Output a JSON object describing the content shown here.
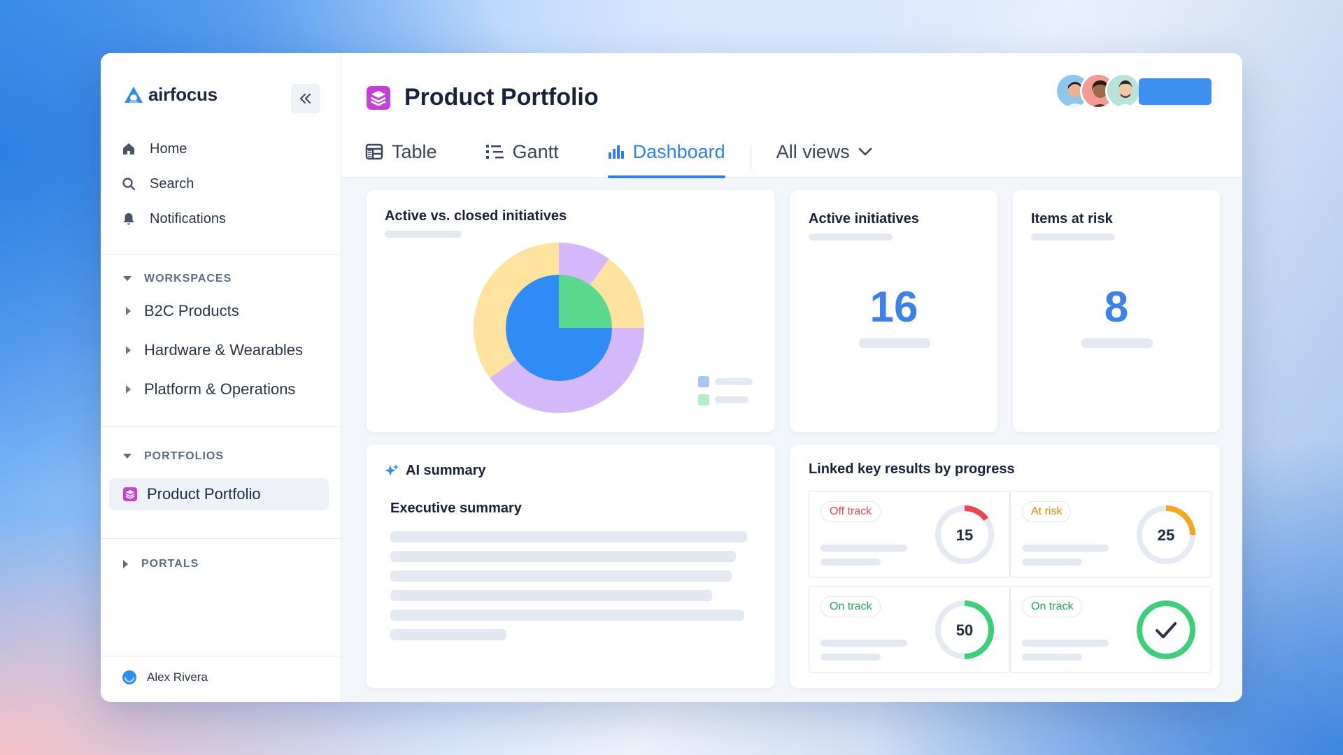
{
  "brand": {
    "name": "airfocus"
  },
  "sidebar": {
    "nav": [
      {
        "label": "Home",
        "icon": "home-icon"
      },
      {
        "label": "Search",
        "icon": "search-icon"
      },
      {
        "label": "Notifications",
        "icon": "bell-icon"
      }
    ],
    "workspaces_heading": "WORKSPACES",
    "workspaces": [
      {
        "label": "B2C Products"
      },
      {
        "label": "Hardware & Wearables"
      },
      {
        "label": "Platform & Operations"
      }
    ],
    "portfolios_heading": "PORTFOLIOS",
    "portfolio_active": "Product Portfolio",
    "portals_heading": "PORTALS",
    "user_name": "Alex Rivera"
  },
  "header": {
    "title": "Product Portfolio",
    "tabs": [
      {
        "label": "Table",
        "icon": "table-icon"
      },
      {
        "label": "Gantt",
        "icon": "gantt-icon"
      },
      {
        "label": "Dashboard",
        "icon": "bar-chart-icon"
      },
      {
        "label": "All views",
        "icon": "chevron-down-icon"
      }
    ],
    "active_tab": "Dashboard"
  },
  "widgets": {
    "pie": {
      "title": "Active vs. closed initiatives"
    },
    "active_initiatives": {
      "title": "Active initiatives",
      "value": "16"
    },
    "items_at_risk": {
      "title": "Items at risk",
      "value": "8"
    },
    "ai_summary": {
      "title": "AI summary",
      "subtitle": "Executive summary"
    },
    "key_results": {
      "title": "Linked key results by progress",
      "cells": [
        {
          "status": "Off track",
          "value": "15",
          "progress": 15,
          "color": "#f04452",
          "text_color": "#e5484d"
        },
        {
          "status": "At risk",
          "value": "25",
          "progress": 25,
          "color": "#f5a524",
          "text_color": "#e08a00"
        },
        {
          "status": "On track",
          "value": "50",
          "progress": 50,
          "color": "#3ccf7a",
          "text_color": "#22a75b"
        },
        {
          "status": "On track",
          "value": "",
          "progress": 100,
          "color": "#3ccf7a",
          "text_color": "#22a75b"
        }
      ]
    }
  },
  "chart_data": {
    "type": "pie",
    "outer_ring": [
      {
        "value": 10,
        "color": "#d5b8fb"
      },
      {
        "value": 15,
        "color": "#ffe29e"
      },
      {
        "value": 40,
        "color": "#d5b8fb"
      },
      {
        "value": 35,
        "color": "#ffe29e"
      }
    ],
    "inner_pie": [
      {
        "value": 25,
        "color": "#5ad98e"
      },
      {
        "value": 75,
        "color": "#2f8cf6"
      }
    ],
    "legend_colors": [
      "#a9c6f7",
      "#b6ecc9"
    ]
  },
  "colors": {
    "accent": "#2d7ff0",
    "brand": "#3d8ff0",
    "portfolio_icon": "#c63fd6"
  }
}
